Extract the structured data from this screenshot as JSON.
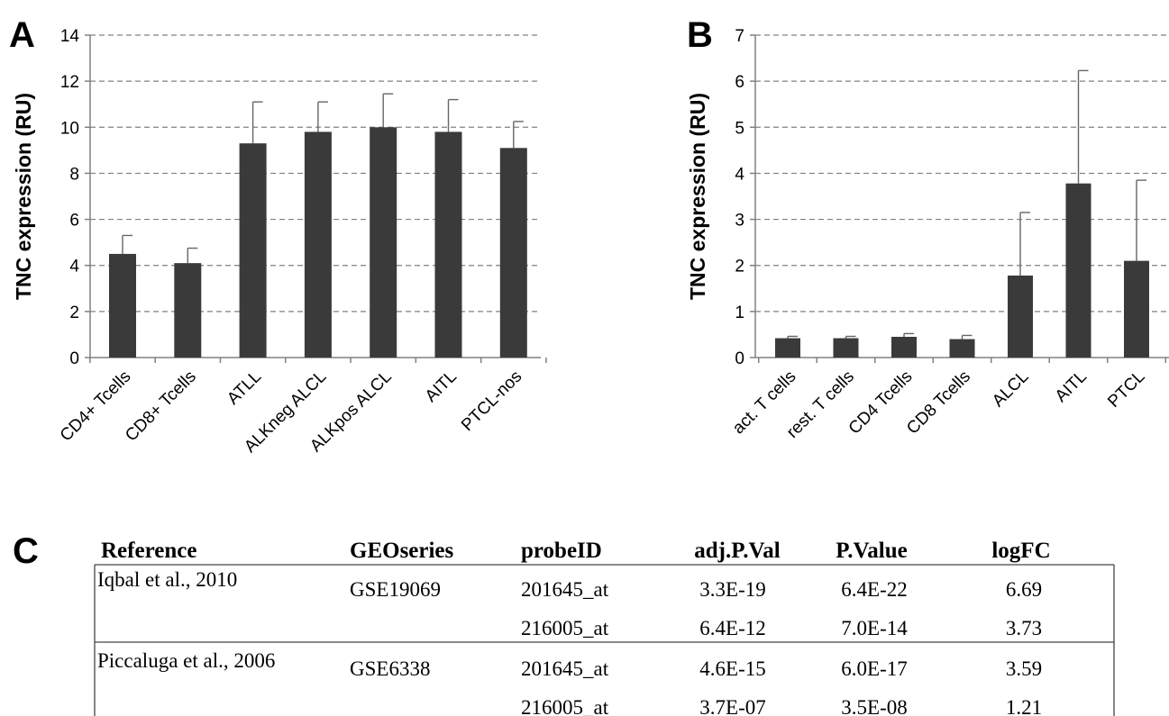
{
  "panels": {
    "a": "A",
    "b": "B",
    "c": "C"
  },
  "chart_data": [
    {
      "type": "bar",
      "ylabel": "TNC expression (RU)",
      "ylim": [
        0,
        14
      ],
      "yticks": [
        0,
        2,
        4,
        6,
        8,
        10,
        12,
        14
      ],
      "grid": true,
      "categories": [
        "CD4+ Tcells",
        "CD8+ Tcells",
        "ATLL",
        "ALKneg ALCL",
        "ALKpos ALCL",
        "AITL",
        "PTCL-nos"
      ],
      "values": [
        4.5,
        4.1,
        9.3,
        9.8,
        10.0,
        9.8,
        9.1
      ],
      "error": [
        0.8,
        0.65,
        1.8,
        1.3,
        1.45,
        1.4,
        1.15
      ]
    },
    {
      "type": "bar",
      "ylabel": "TNC  expression (RU)",
      "ylim": [
        0,
        7
      ],
      "yticks": [
        0,
        1,
        2,
        3,
        4,
        5,
        6,
        7
      ],
      "grid": true,
      "categories": [
        "act. T cells",
        "rest. T cells",
        "CD4 Tcells",
        "CD8 Tcells",
        "ALCL",
        "AITL",
        "PTCL"
      ],
      "values": [
        0.42,
        0.42,
        0.45,
        0.4,
        1.78,
        3.78,
        2.1
      ],
      "error": [
        0.04,
        0.04,
        0.07,
        0.08,
        1.37,
        2.45,
        1.75
      ]
    },
    {
      "type": "table",
      "columns": [
        "Reference",
        "GEOseries",
        "probeID",
        "adj.P.Val",
        "P.Value",
        "logFC"
      ],
      "rows": [
        [
          "Iqbal et al., 2010",
          "GSE19069",
          "201645_at",
          "3.3E-19",
          "6.4E-22",
          "6.69"
        ],
        [
          "",
          "",
          "216005_at",
          "6.4E-12",
          "7.0E-14",
          "3.73"
        ],
        [
          "Piccaluga et al., 2006",
          "GSE6338",
          "201645_at",
          "4.6E-15",
          "6.0E-17",
          "3.59"
        ],
        [
          "",
          "",
          "216005_at",
          "3.7E-07",
          "3.5E-08",
          "1.21"
        ]
      ]
    }
  ],
  "colors": {
    "bar": "#3a3a3a",
    "axis": "#808080",
    "grid": "#808080",
    "text": "#000000"
  }
}
